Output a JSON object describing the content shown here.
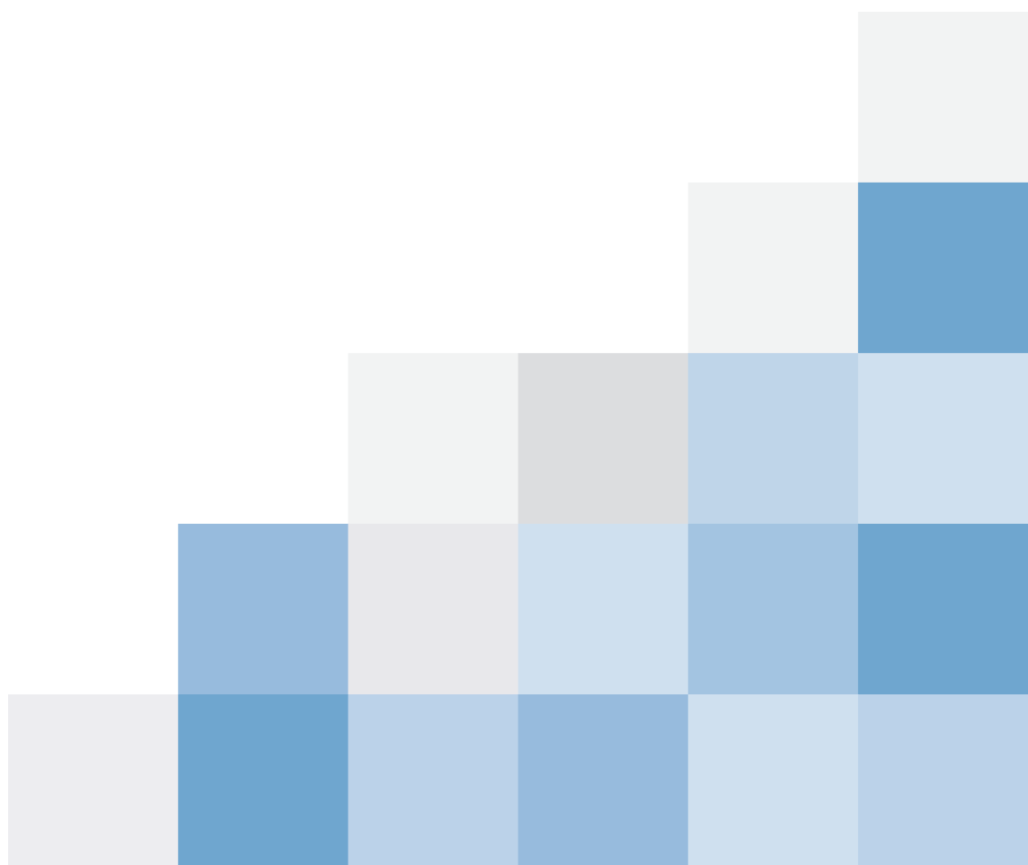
{
  "chart_data": {
    "type": "heatmap",
    "shape": "lower-triangle (anchored bottom-right)",
    "title": "",
    "xlabel": "",
    "ylabel": "",
    "axis_labels_visible": false,
    "legend": "none",
    "n_rows": 5,
    "n_cols": 6,
    "cells": [
      [
        null,
        null,
        null,
        null,
        null,
        "#F2F3F3"
      ],
      [
        null,
        null,
        null,
        null,
        "#F2F3F3",
        "#6FA6CF"
      ],
      [
        null,
        null,
        "#F2F3F3",
        "#DCDDDF",
        "#BFD5E9",
        "#CFE0EF"
      ],
      [
        null,
        "#97BBDD",
        "#E8E8EB",
        "#CFE0EF",
        "#A3C4E1",
        "#6FA6CF"
      ],
      [
        "#EDEDF0",
        "#6FA6CF",
        "#BBD2E9",
        "#97BBDD",
        "#CFE0EF",
        "#BBD2E9"
      ]
    ]
  }
}
